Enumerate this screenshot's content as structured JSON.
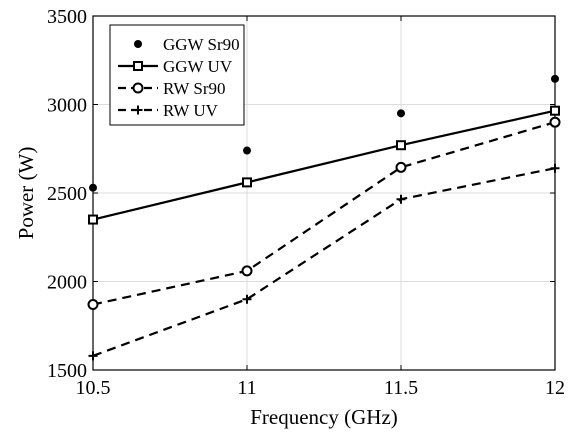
{
  "chart_data": {
    "type": "line",
    "title": "",
    "xlabel": "Frequency (GHz)",
    "ylabel": "Power (W)",
    "x": [
      10.5,
      11,
      11.5,
      12
    ],
    "xlim": [
      10.5,
      12
    ],
    "ylim": [
      1500,
      3500
    ],
    "xticks": [
      "10.5",
      "11",
      "11.5",
      "12"
    ],
    "yticks": [
      "1500",
      "2000",
      "2500",
      "3000",
      "3500"
    ],
    "grid": true,
    "legend_position": "top-left",
    "series": [
      {
        "name": "GGW Sr90",
        "values": [
          2530,
          2740,
          2950,
          3145
        ],
        "line": "none",
        "marker": "dot"
      },
      {
        "name": "GGW UV",
        "values": [
          2350,
          2560,
          2770,
          2965
        ],
        "line": "solid",
        "marker": "square"
      },
      {
        "name": "RW Sr90",
        "values": [
          1870,
          2060,
          2645,
          2900
        ],
        "line": "dashed",
        "marker": "circle"
      },
      {
        "name": "RW UV",
        "values": [
          1580,
          1900,
          2465,
          2640
        ],
        "line": "dashed",
        "marker": "plus"
      }
    ]
  }
}
